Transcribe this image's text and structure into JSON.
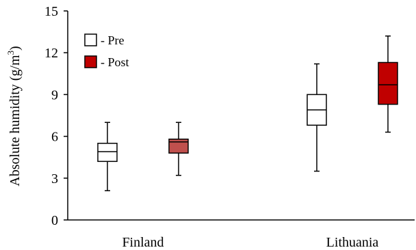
{
  "chart_data": {
    "type": "boxplot",
    "title": "",
    "xlabel": "",
    "ylabel": "Absolute humidity (g/m",
    "ylabel_superscript": "3",
    "ylabel_suffix": ")",
    "ylim": [
      0,
      15
    ],
    "yticks": [
      0,
      3,
      6,
      9,
      12,
      15
    ],
    "grid": false,
    "legend_position": "top-left",
    "categories": [
      "Finland",
      "Lithuania"
    ],
    "series": [
      {
        "name": "- Pre",
        "fill": "#ffffff",
        "boxes": [
          {
            "category": "Finland",
            "min": 2.1,
            "q1": 4.2,
            "median": 4.9,
            "q3": 5.5,
            "max": 7.0
          },
          {
            "category": "Lithuania",
            "min": 3.5,
            "q1": 6.8,
            "median": 7.9,
            "q3": 9.0,
            "max": 11.2
          }
        ]
      },
      {
        "name": "- Post",
        "fill": "#c00000",
        "boxes": [
          {
            "category": "Finland",
            "min": 3.2,
            "q1": 4.8,
            "median": 5.6,
            "q3": 5.8,
            "max": 7.0,
            "fill": "#c0504d"
          },
          {
            "category": "Lithuania",
            "min": 6.3,
            "q1": 8.3,
            "median": 9.7,
            "q3": 11.3,
            "max": 13.2
          }
        ]
      }
    ]
  }
}
